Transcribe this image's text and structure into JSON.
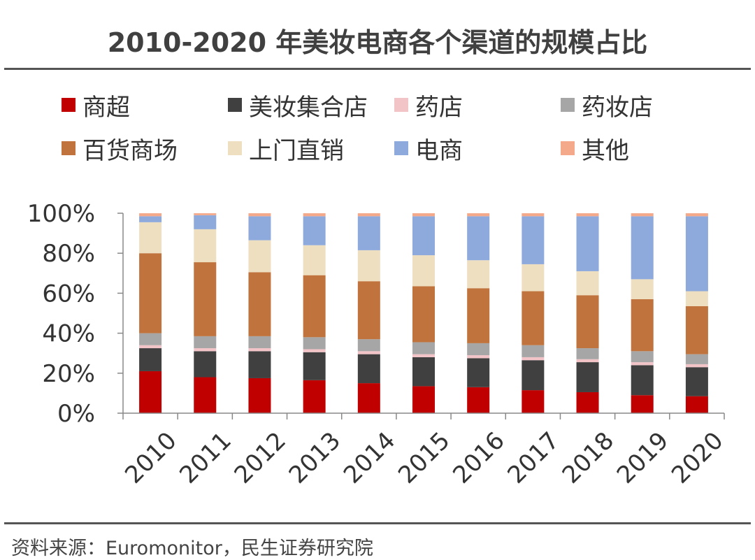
{
  "title": "2010-2020 年美妆电商各个渠道的规模占比",
  "source": "资料来源：Euromonitor，民生证券研究院",
  "legend": [
    {
      "label": "商超",
      "color": "#C00000"
    },
    {
      "label": "美妆集合店",
      "color": "#404040"
    },
    {
      "label": "药店",
      "color": "#F2C4C8"
    },
    {
      "label": "药妆店",
      "color": "#A6A6A6"
    },
    {
      "label": "百货商场",
      "color": "#C0733C"
    },
    {
      "label": "上门直销",
      "color": "#EEDFC0"
    },
    {
      "label": "电商",
      "color": "#8EA9DB"
    },
    {
      "label": "其他",
      "color": "#F4A98A"
    }
  ],
  "chart_data": {
    "type": "bar",
    "stacked": true,
    "categories": [
      "2010",
      "2011",
      "2012",
      "2013",
      "2014",
      "2015",
      "2016",
      "2017",
      "2018",
      "2019",
      "2020"
    ],
    "yticks": [
      "0%",
      "20%",
      "40%",
      "60%",
      "80%",
      "100%"
    ],
    "ylim": [
      0,
      100
    ],
    "series": [
      {
        "name": "商超",
        "color": "#C00000",
        "values": [
          21,
          18,
          17.5,
          16.5,
          15,
          13.5,
          13,
          11.5,
          10.5,
          9,
          8.5
        ]
      },
      {
        "name": "美妆集合店",
        "color": "#404040",
        "values": [
          11.5,
          13,
          13.5,
          14,
          14.5,
          14.5,
          14.5,
          15,
          15,
          15,
          14.5
        ]
      },
      {
        "name": "药店",
        "color": "#F2C4C8",
        "values": [
          1.5,
          1.5,
          1.5,
          1.5,
          1.5,
          1.5,
          1.5,
          1.5,
          1.5,
          1.5,
          1.5
        ]
      },
      {
        "name": "药妆店",
        "color": "#A6A6A6",
        "values": [
          6,
          6,
          6,
          6,
          6,
          6,
          6,
          6,
          5.5,
          5.5,
          5
        ]
      },
      {
        "name": "百货商场",
        "color": "#C0733C",
        "values": [
          40,
          37,
          32,
          31,
          29,
          28,
          27.5,
          27,
          26.5,
          26,
          24
        ]
      },
      {
        "name": "上门直销",
        "color": "#EEDFC0",
        "values": [
          15.5,
          16.5,
          16,
          15,
          15.5,
          15.5,
          14,
          13.5,
          12,
          10,
          7.5
        ]
      },
      {
        "name": "电商",
        "color": "#8EA9DB",
        "values": [
          3,
          7,
          12,
          14.5,
          17,
          19.5,
          22,
          24,
          27.5,
          31.5,
          37.5
        ]
      },
      {
        "name": "其他",
        "color": "#F4A98A",
        "values": [
          1.5,
          1,
          1.5,
          1.5,
          1.5,
          1.5,
          1.5,
          1.5,
          1.5,
          1.5,
          1.5
        ]
      }
    ]
  }
}
